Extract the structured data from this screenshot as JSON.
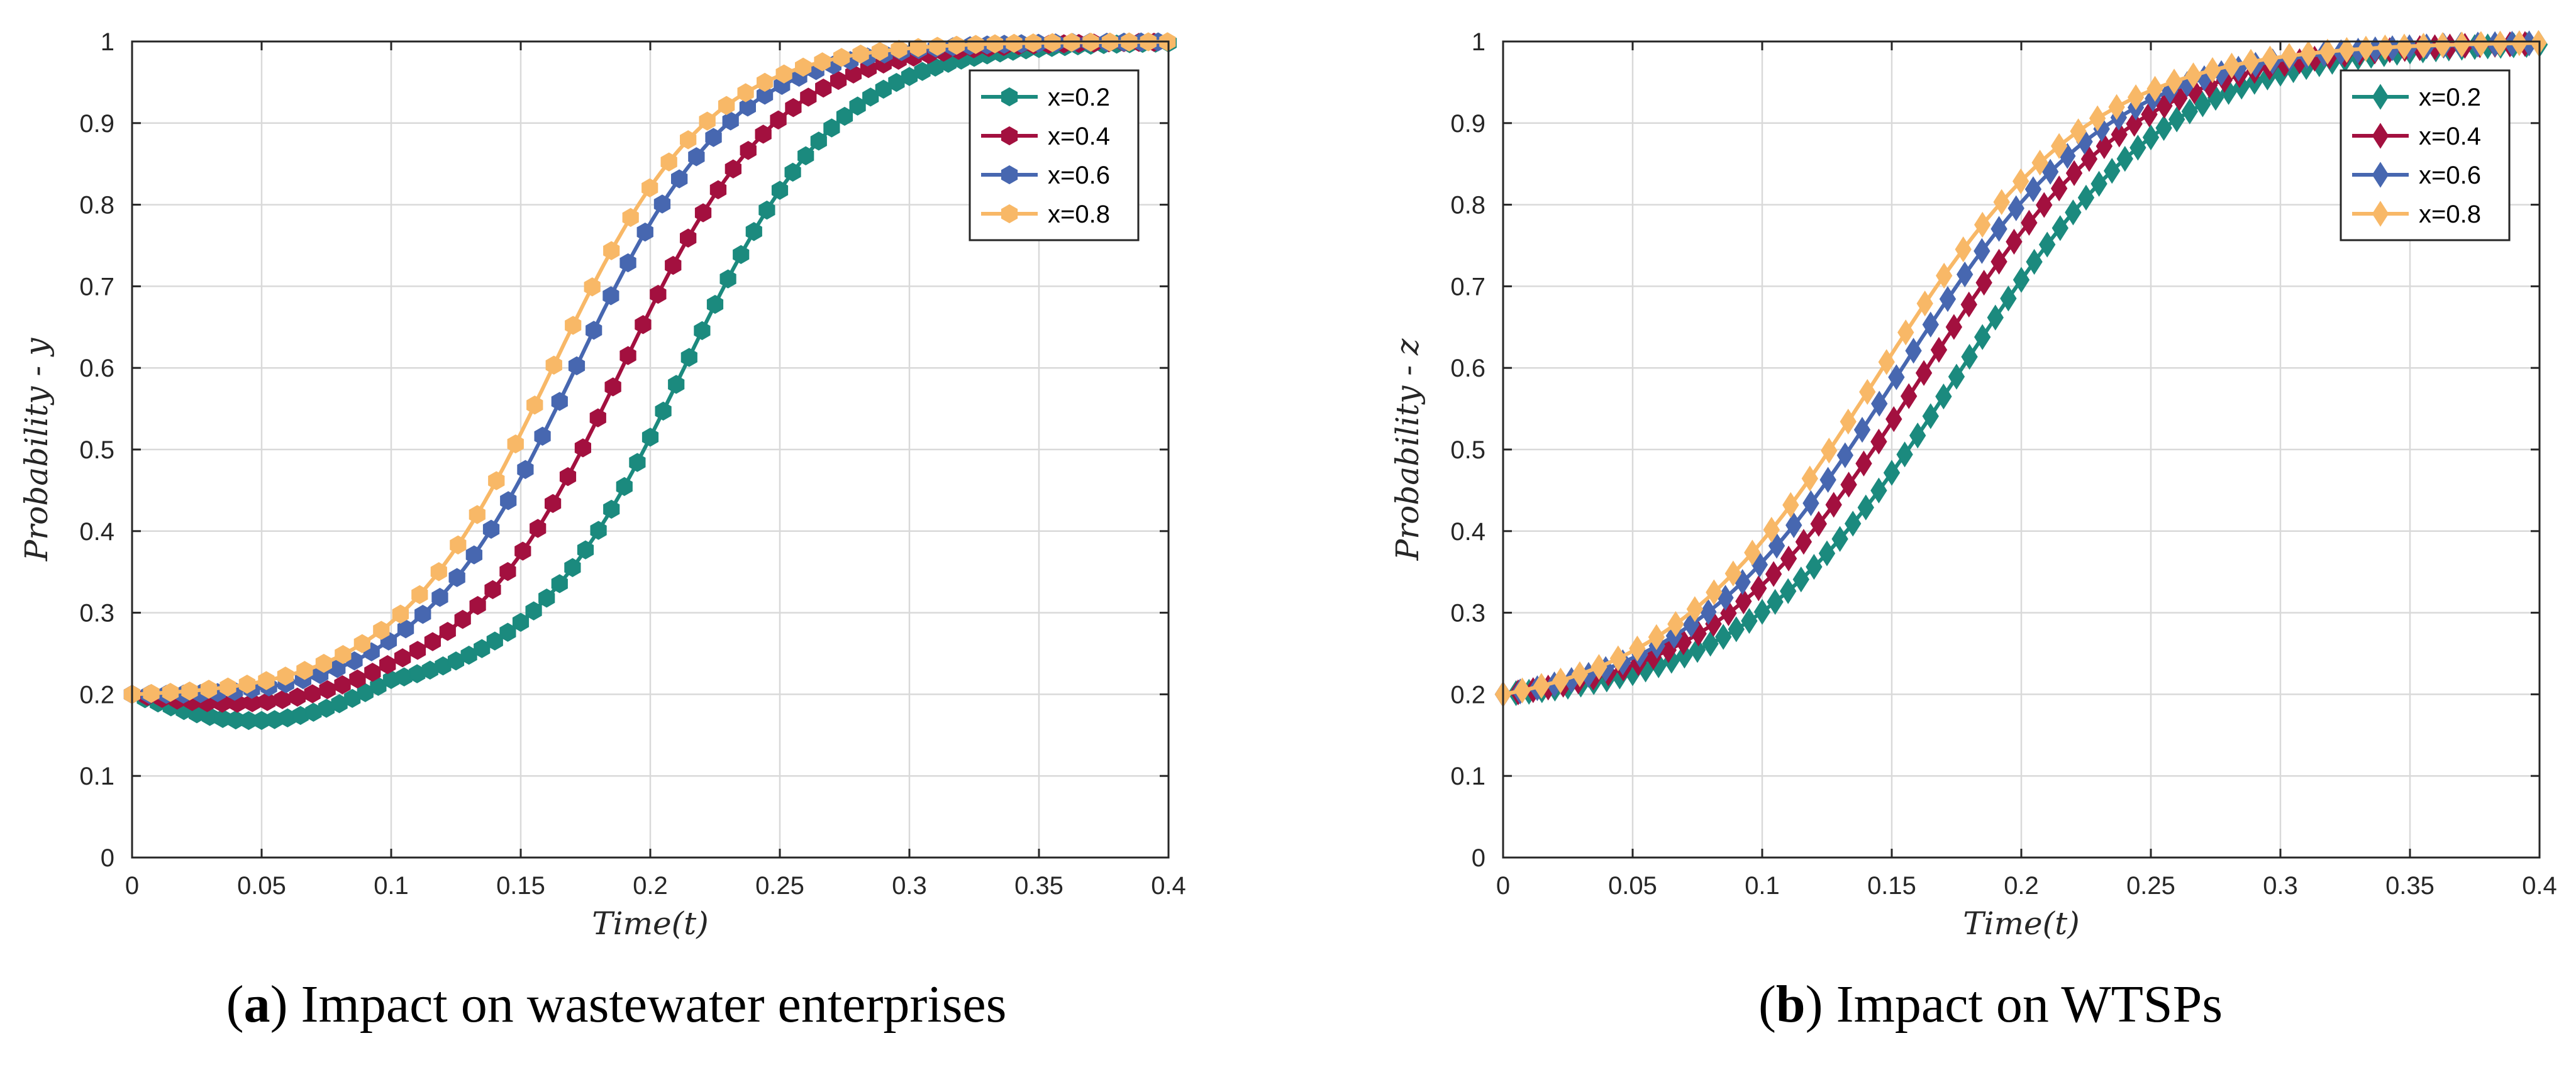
{
  "chart_data": [
    {
      "type": "line",
      "panel": "a",
      "caption_letter": "a",
      "caption_text": " Impact on wastewater enterprises",
      "xlabel": "Time(t)",
      "ylabel": "Probability - y",
      "xlim": [
        0,
        0.4
      ],
      "ylim": [
        0,
        1
      ],
      "xticks": [
        "0",
        "0.05",
        "0.1",
        "0.15",
        "0.2",
        "0.25",
        "0.3",
        "0.35",
        "0.4"
      ],
      "yticks": [
        "0",
        "0.1",
        "0.2",
        "0.3",
        "0.4",
        "0.5",
        "0.6",
        "0.7",
        "0.8",
        "0.9",
        "1"
      ],
      "marker": "hexagon",
      "grid": true,
      "legend_position": "top-right",
      "series": [
        {
          "name": "x=0.2",
          "color": "#1b8a7e",
          "t0": 0.213,
          "k": 33,
          "dip": 0.035,
          "y0": 0.2
        },
        {
          "name": "x=0.4",
          "color": "#a3103f",
          "t0": 0.189,
          "k": 33,
          "dip": 0.016,
          "y0": 0.2
        },
        {
          "name": "x=0.6",
          "color": "#4767b0",
          "t0": 0.171,
          "k": 33,
          "dip": 0.004,
          "y0": 0.2
        },
        {
          "name": "x=0.8",
          "color": "#f8b867",
          "t0": 0.162,
          "k": 33,
          "dip": 0.0,
          "y0": 0.2
        }
      ]
    },
    {
      "type": "line",
      "panel": "b",
      "caption_letter": "b",
      "caption_text": " Impact on WTSPs",
      "xlabel": "Time(t)",
      "ylabel": "Probability - z",
      "xlim": [
        0,
        0.4
      ],
      "ylim": [
        0,
        1
      ],
      "xticks": [
        "0",
        "0.05",
        "0.1",
        "0.15",
        "0.2",
        "0.25",
        "0.3",
        "0.35",
        "0.4"
      ],
      "yticks": [
        "0",
        "0.1",
        "0.2",
        "0.3",
        "0.4",
        "0.5",
        "0.6",
        "0.7",
        "0.8",
        "0.9",
        "1"
      ],
      "marker": "diamond",
      "grid": true,
      "legend_position": "top-right",
      "series": [
        {
          "name": "x=0.2",
          "color": "#1b8a7e",
          "t0": 0.176,
          "k": 24,
          "dip": 0.0,
          "y0": 0.2
        },
        {
          "name": "x=0.4",
          "color": "#a3103f",
          "t0": 0.162,
          "k": 24,
          "dip": 0.0,
          "y0": 0.2
        },
        {
          "name": "x=0.6",
          "color": "#4767b0",
          "t0": 0.152,
          "k": 24,
          "dip": 0.0,
          "y0": 0.2
        },
        {
          "name": "x=0.8",
          "color": "#f8b867",
          "t0": 0.144,
          "k": 24,
          "dip": 0.0,
          "y0": 0.2
        }
      ]
    }
  ]
}
